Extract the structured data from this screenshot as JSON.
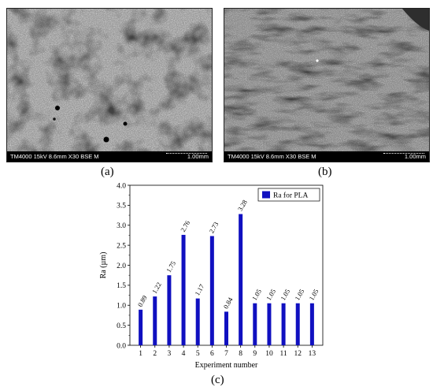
{
  "panels": {
    "a": {
      "label": "(a)",
      "info_text": "TM4000 15kV 8.6mm X30 BSE M",
      "scale_text": "1.00mm"
    },
    "b": {
      "label": "(b)",
      "info_text": "TM4000 15kV 8.6mm X30 BSE M",
      "scale_text": "1.00mm"
    },
    "c": {
      "label": "(c)"
    }
  },
  "colors": {
    "bar": "#1010c0",
    "sem_light": "#b9b9b9",
    "sem_dark": "#4a4a4a"
  },
  "chart_data": {
    "type": "bar",
    "categories": [
      "1",
      "2",
      "3",
      "4",
      "5",
      "6",
      "7",
      "8",
      "9",
      "10",
      "11",
      "12",
      "13"
    ],
    "series": [
      {
        "name": "Ra for PLA",
        "values": [
          0.89,
          1.22,
          1.75,
          2.76,
          1.17,
          2.73,
          0.84,
          3.28,
          1.05,
          1.05,
          1.05,
          1.05,
          1.05
        ]
      }
    ],
    "data_labels": [
      "0.89",
      "1.22",
      "1.75",
      "2.76",
      "1.17",
      "2.73",
      "0.84",
      "3.28",
      "1.05",
      "1.05",
      "1.05",
      "1.05",
      "1.05"
    ],
    "xlabel": "Experiment number",
    "ylabel": "Ra (µm)",
    "ylim": [
      0,
      4.0
    ],
    "yticks": [
      "0.0",
      "0.5",
      "1.0",
      "1.5",
      "2.0",
      "2.5",
      "3.0",
      "3.5",
      "4.0"
    ],
    "legend_position": "top-right",
    "grid": false
  }
}
